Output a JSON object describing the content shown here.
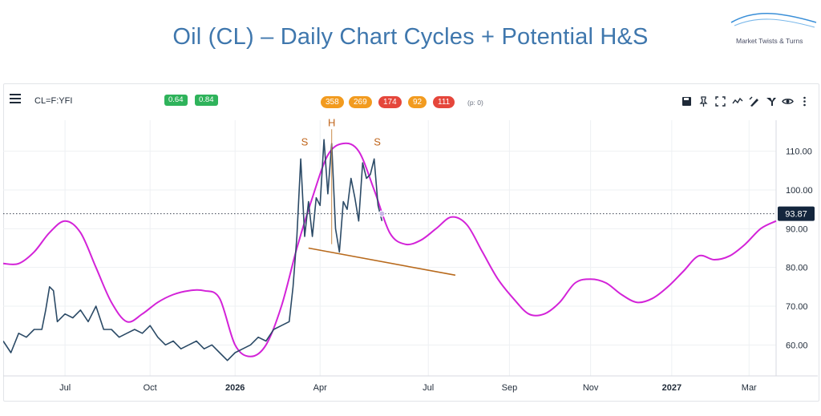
{
  "title": "Oil (CL) – Daily Chart Cycles + Potential H&S",
  "brand": "Market Twists & Turns",
  "toolbar": {
    "symbol": "CL=F:YFI",
    "indicators": [
      "0.64",
      "0.84"
    ],
    "cycles": [
      {
        "label": "358",
        "color": "#f29b1f"
      },
      {
        "label": "269",
        "color": "#f29b1f"
      },
      {
        "label": "174",
        "color": "#e5463b"
      },
      {
        "label": "92",
        "color": "#f29b1f"
      },
      {
        "label": "111",
        "color": "#e5463b"
      }
    ],
    "pcount": "(p: 0)",
    "icons": [
      "save-icon",
      "pin-icon",
      "fullscreen-icon",
      "compare-icon",
      "drawing-icon",
      "filter-icon",
      "eye-icon",
      "more-icon"
    ]
  },
  "chart_data": {
    "type": "line",
    "x_ticks": [
      {
        "label": "Jul",
        "t": 0.08
      },
      {
        "label": "Oct",
        "t": 0.19
      },
      {
        "label": "2026",
        "t": 0.3
      },
      {
        "label": "Apr",
        "t": 0.41
      },
      {
        "label": "Jul",
        "t": 0.55
      },
      {
        "label": "Sep",
        "t": 0.655
      },
      {
        "label": "Nov",
        "t": 0.76
      },
      {
        "label": "2027",
        "t": 0.865
      },
      {
        "label": "Mar",
        "t": 0.965
      }
    ],
    "ylim": [
      52,
      118
    ],
    "y_ticks": [
      60,
      70,
      80,
      90,
      100,
      110
    ],
    "last_price": 93.87,
    "last_price_label": "93.87",
    "price_color": "#2b4a66",
    "cycle_color": "#d323d8",
    "neckline_color": "#b86a1d",
    "series": [
      {
        "name": "price",
        "values": [
          [
            0.0,
            61
          ],
          [
            0.01,
            58
          ],
          [
            0.02,
            63
          ],
          [
            0.03,
            62
          ],
          [
            0.04,
            64
          ],
          [
            0.05,
            64
          ],
          [
            0.055,
            69
          ],
          [
            0.06,
            75
          ],
          [
            0.065,
            74
          ],
          [
            0.07,
            66
          ],
          [
            0.08,
            68
          ],
          [
            0.09,
            67
          ],
          [
            0.1,
            69
          ],
          [
            0.11,
            66
          ],
          [
            0.12,
            70
          ],
          [
            0.13,
            64
          ],
          [
            0.14,
            64
          ],
          [
            0.15,
            62
          ],
          [
            0.16,
            63
          ],
          [
            0.17,
            64
          ],
          [
            0.18,
            63
          ],
          [
            0.19,
            65
          ],
          [
            0.2,
            62
          ],
          [
            0.21,
            60
          ],
          [
            0.22,
            61
          ],
          [
            0.23,
            59
          ],
          [
            0.24,
            60
          ],
          [
            0.25,
            61
          ],
          [
            0.26,
            59
          ],
          [
            0.27,
            60
          ],
          [
            0.28,
            58
          ],
          [
            0.29,
            56
          ],
          [
            0.3,
            58
          ],
          [
            0.31,
            59
          ],
          [
            0.32,
            60
          ],
          [
            0.33,
            62
          ],
          [
            0.34,
            61
          ],
          [
            0.35,
            64
          ],
          [
            0.36,
            65
          ],
          [
            0.37,
            66
          ],
          [
            0.375,
            75
          ],
          [
            0.38,
            88
          ],
          [
            0.385,
            108
          ],
          [
            0.39,
            88
          ],
          [
            0.395,
            97
          ],
          [
            0.4,
            88
          ],
          [
            0.405,
            98
          ],
          [
            0.41,
            96
          ],
          [
            0.415,
            113
          ],
          [
            0.42,
            99
          ],
          [
            0.425,
            112
          ],
          [
            0.43,
            90
          ],
          [
            0.435,
            84
          ],
          [
            0.44,
            97
          ],
          [
            0.445,
            95
          ],
          [
            0.45,
            103
          ],
          [
            0.455,
            98
          ],
          [
            0.46,
            92
          ],
          [
            0.465,
            107
          ],
          [
            0.47,
            103
          ],
          [
            0.475,
            104
          ],
          [
            0.48,
            108
          ],
          [
            0.485,
            96
          ],
          [
            0.49,
            92
          ]
        ]
      },
      {
        "name": "cycle",
        "values": [
          [
            0.0,
            81
          ],
          [
            0.02,
            81
          ],
          [
            0.04,
            84
          ],
          [
            0.06,
            89
          ],
          [
            0.08,
            92
          ],
          [
            0.1,
            89
          ],
          [
            0.12,
            80
          ],
          [
            0.14,
            71
          ],
          [
            0.16,
            66
          ],
          [
            0.18,
            68
          ],
          [
            0.2,
            71
          ],
          [
            0.22,
            73
          ],
          [
            0.24,
            74
          ],
          [
            0.26,
            74
          ],
          [
            0.28,
            72
          ],
          [
            0.3,
            60
          ],
          [
            0.32,
            57
          ],
          [
            0.34,
            60
          ],
          [
            0.36,
            70
          ],
          [
            0.38,
            85
          ],
          [
            0.4,
            98
          ],
          [
            0.42,
            109
          ],
          [
            0.44,
            112
          ],
          [
            0.46,
            110
          ],
          [
            0.48,
            100
          ],
          [
            0.5,
            89
          ],
          [
            0.52,
            86
          ],
          [
            0.54,
            87
          ],
          [
            0.56,
            90
          ],
          [
            0.58,
            93
          ],
          [
            0.6,
            91
          ],
          [
            0.62,
            84
          ],
          [
            0.64,
            77
          ],
          [
            0.66,
            72
          ],
          [
            0.68,
            68
          ],
          [
            0.7,
            68
          ],
          [
            0.72,
            71
          ],
          [
            0.74,
            76
          ],
          [
            0.76,
            77
          ],
          [
            0.78,
            76
          ],
          [
            0.8,
            73
          ],
          [
            0.82,
            71
          ],
          [
            0.84,
            72
          ],
          [
            0.86,
            75
          ],
          [
            0.88,
            79
          ],
          [
            0.9,
            83
          ],
          [
            0.92,
            82
          ],
          [
            0.94,
            83
          ],
          [
            0.96,
            86
          ],
          [
            0.98,
            90
          ],
          [
            1.0,
            92
          ]
        ]
      }
    ],
    "annotations": [
      {
        "label": "S",
        "t": 0.39,
        "y": 111.5
      },
      {
        "label": "H",
        "t": 0.425,
        "y": 116.5
      },
      {
        "label": "S",
        "t": 0.484,
        "y": 111.5
      }
    ],
    "neckline": [
      [
        0.395,
        85
      ],
      [
        0.585,
        78
      ]
    ]
  }
}
